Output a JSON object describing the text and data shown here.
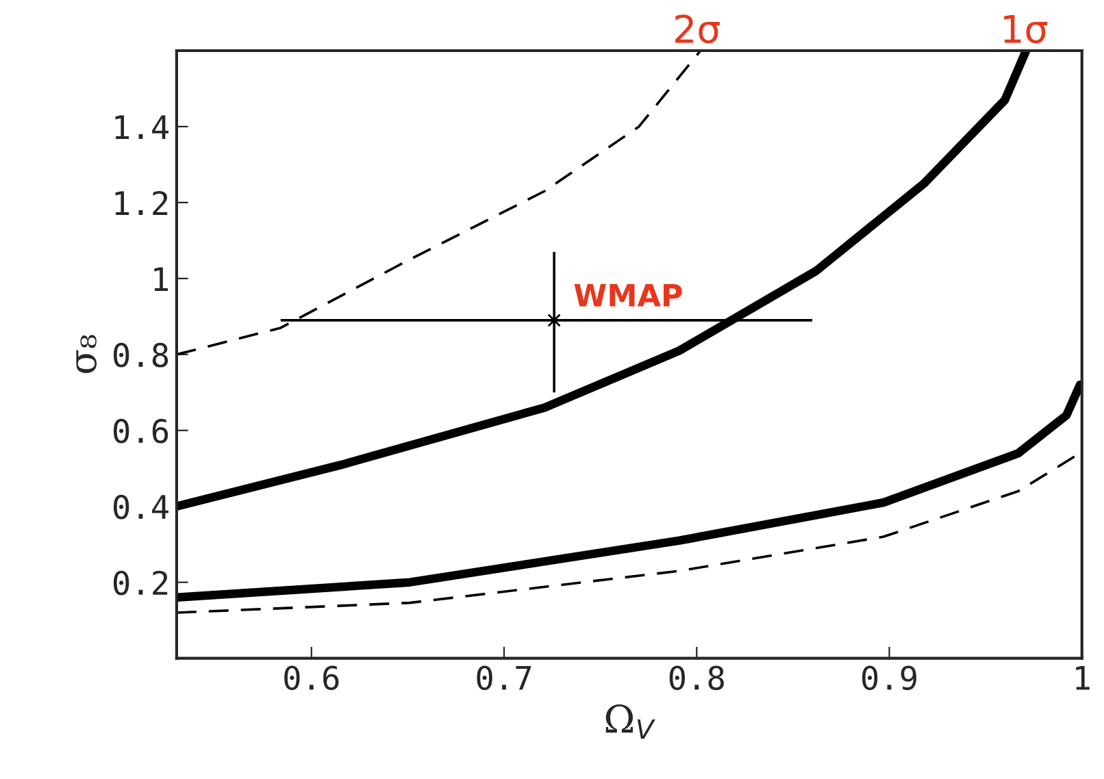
{
  "chart_data": {
    "type": "line",
    "xlabel": "Ω$_{V}$",
    "ylabel": "σ₈",
    "xlim": [
      0.53,
      1.0
    ],
    "ylim": [
      0,
      1.6
    ],
    "xticks": [
      0.6,
      0.7,
      0.8,
      0.9,
      1
    ],
    "yticks": [
      0.2,
      0.4,
      0.6,
      0.8,
      1,
      1.2,
      1.4
    ],
    "grid": false,
    "marker": "none",
    "series": [
      {
        "color": "#000000",
        "line_style": "dashed",
        "x": [
          0.53,
          0.584,
          0.651,
          0.721,
          0.77,
          0.802
        ],
        "values": [
          0.8,
          0.87,
          1.05,
          1.23,
          1.4,
          1.6
        ]
      },
      {
        "color": "#000000",
        "line_style": "solid",
        "x": [
          0.53,
          0.616,
          0.721,
          0.791,
          0.862,
          0.918,
          0.96,
          0.971
        ],
        "values": [
          0.4,
          0.51,
          0.66,
          0.81,
          1.02,
          1.25,
          1.47,
          1.6
        ]
      },
      {
        "color": "#000000",
        "line_style": "solid",
        "x": [
          0.53,
          0.651,
          0.791,
          0.897,
          0.967,
          0.992,
          0.999
        ],
        "values": [
          0.16,
          0.2,
          0.31,
          0.41,
          0.54,
          0.64,
          0.72
        ]
      },
      {
        "color": "#000000",
        "line_style": "dashed",
        "x": [
          0.53,
          0.651,
          0.791,
          0.897,
          0.967,
          0.999
        ],
        "values": [
          0.12,
          0.146,
          0.23,
          0.32,
          0.44,
          0.54
        ]
      },
      {
        "type": "scatter",
        "marker": "cross",
        "color": "#000000",
        "x": [
          0.726
        ],
        "values": [
          0.89
        ],
        "errors": [
          [
            0.7,
            1.07
          ]
        ],
        "xerrors": [
          [
            0.584,
            0.86
          ]
        ]
      }
    ],
    "annotations": [
      {
        "text": "WMAP",
        "x": 0.726,
        "y": 0.89
      },
      {
        "text": "2σ",
        "x": 0.8,
        "y": 1.6
      },
      {
        "text": "1σ",
        "x": 0.97,
        "y": 1.6
      }
    ]
  }
}
